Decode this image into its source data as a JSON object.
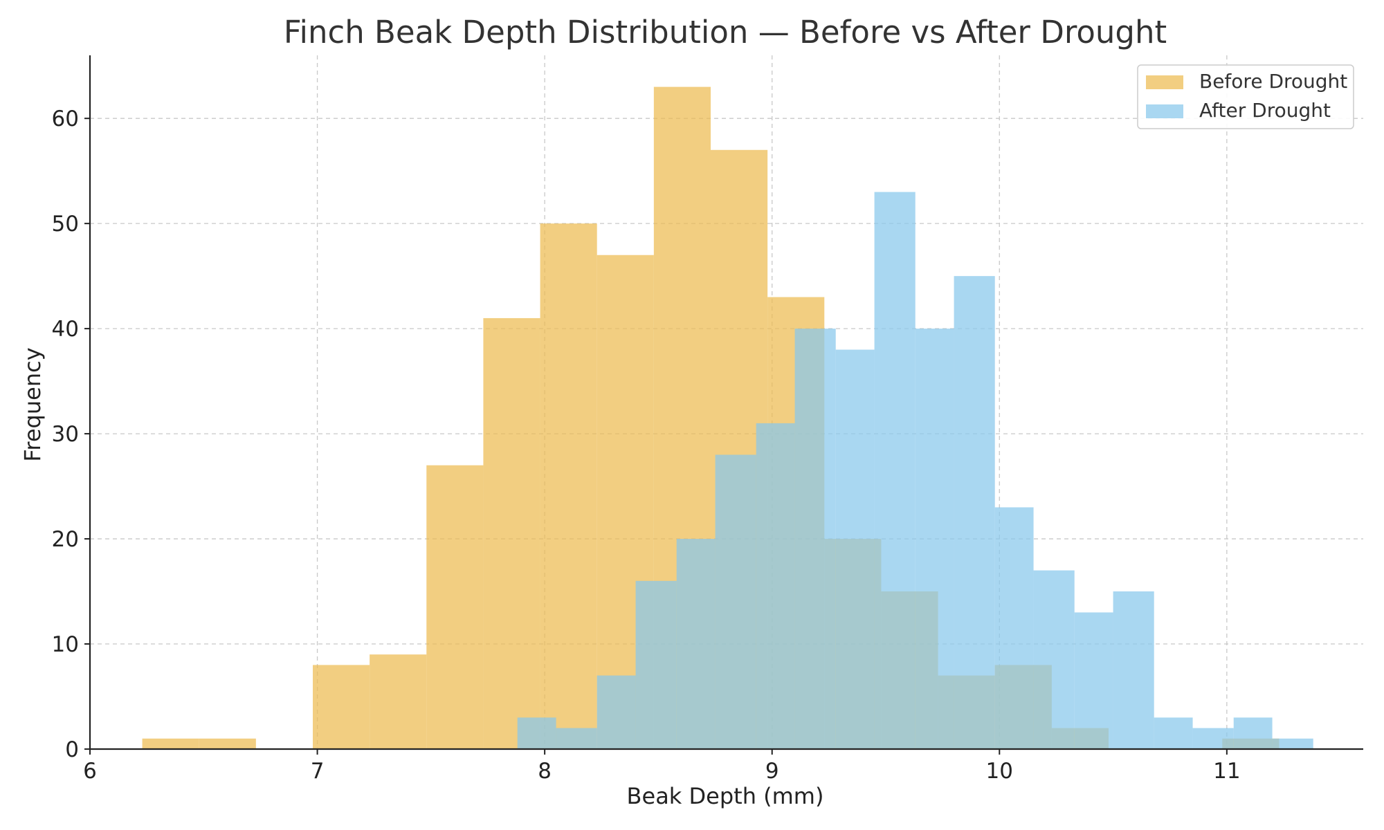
{
  "chart_data": {
    "type": "bar",
    "title": "Finch Beak Depth Distribution — Before vs After Drought",
    "xlabel": "Beak Depth (mm)",
    "ylabel": "Frequency",
    "xlim": [
      6,
      11.6
    ],
    "ylim": [
      0,
      66
    ],
    "x_ticks": [
      6,
      7,
      8,
      9,
      10,
      11
    ],
    "y_ticks": [
      0,
      10,
      20,
      30,
      40,
      50,
      60
    ],
    "grid": true,
    "legend_position": "top-right",
    "series": [
      {
        "name": "Before Drought",
        "color": "#EDBB50",
        "opacity": 0.72,
        "bins": [
          {
            "x0": 6.23,
            "x1": 6.48,
            "count": 1
          },
          {
            "x0": 6.48,
            "x1": 6.73,
            "count": 1
          },
          {
            "x0": 6.98,
            "x1": 7.23,
            "count": 8
          },
          {
            "x0": 7.23,
            "x1": 7.48,
            "count": 9
          },
          {
            "x0": 7.48,
            "x1": 7.73,
            "count": 27
          },
          {
            "x0": 7.73,
            "x1": 7.98,
            "count": 41
          },
          {
            "x0": 7.98,
            "x1": 8.23,
            "count": 50
          },
          {
            "x0": 8.23,
            "x1": 8.48,
            "count": 47
          },
          {
            "x0": 8.48,
            "x1": 8.73,
            "count": 63
          },
          {
            "x0": 8.73,
            "x1": 8.98,
            "count": 57
          },
          {
            "x0": 8.98,
            "x1": 9.23,
            "count": 43
          },
          {
            "x0": 9.23,
            "x1": 9.48,
            "count": 20
          },
          {
            "x0": 9.48,
            "x1": 9.73,
            "count": 15
          },
          {
            "x0": 9.73,
            "x1": 9.98,
            "count": 7
          },
          {
            "x0": 9.98,
            "x1": 10.23,
            "count": 8
          },
          {
            "x0": 10.23,
            "x1": 10.48,
            "count": 2
          },
          {
            "x0": 10.98,
            "x1": 11.23,
            "count": 1
          }
        ]
      },
      {
        "name": "After Drought",
        "color": "#88C8EC",
        "opacity": 0.72,
        "bins": [
          {
            "x0": 7.88,
            "x1": 8.05,
            "count": 3
          },
          {
            "x0": 8.05,
            "x1": 8.23,
            "count": 2
          },
          {
            "x0": 8.23,
            "x1": 8.4,
            "count": 7
          },
          {
            "x0": 8.4,
            "x1": 8.58,
            "count": 16
          },
          {
            "x0": 8.58,
            "x1": 8.75,
            "count": 20
          },
          {
            "x0": 8.75,
            "x1": 8.93,
            "count": 28
          },
          {
            "x0": 8.93,
            "x1": 9.1,
            "count": 31
          },
          {
            "x0": 9.1,
            "x1": 9.28,
            "count": 40
          },
          {
            "x0": 9.28,
            "x1": 9.45,
            "count": 38
          },
          {
            "x0": 9.45,
            "x1": 9.63,
            "count": 53
          },
          {
            "x0": 9.63,
            "x1": 9.8,
            "count": 40
          },
          {
            "x0": 9.8,
            "x1": 9.98,
            "count": 45
          },
          {
            "x0": 9.98,
            "x1": 10.15,
            "count": 23
          },
          {
            "x0": 10.15,
            "x1": 10.33,
            "count": 17
          },
          {
            "x0": 10.33,
            "x1": 10.5,
            "count": 13
          },
          {
            "x0": 10.5,
            "x1": 10.68,
            "count": 15
          },
          {
            "x0": 10.68,
            "x1": 10.85,
            "count": 3
          },
          {
            "x0": 10.85,
            "x1": 11.03,
            "count": 2
          },
          {
            "x0": 11.03,
            "x1": 11.2,
            "count": 3
          },
          {
            "x0": 11.2,
            "x1": 11.38,
            "count": 1
          }
        ]
      }
    ]
  }
}
